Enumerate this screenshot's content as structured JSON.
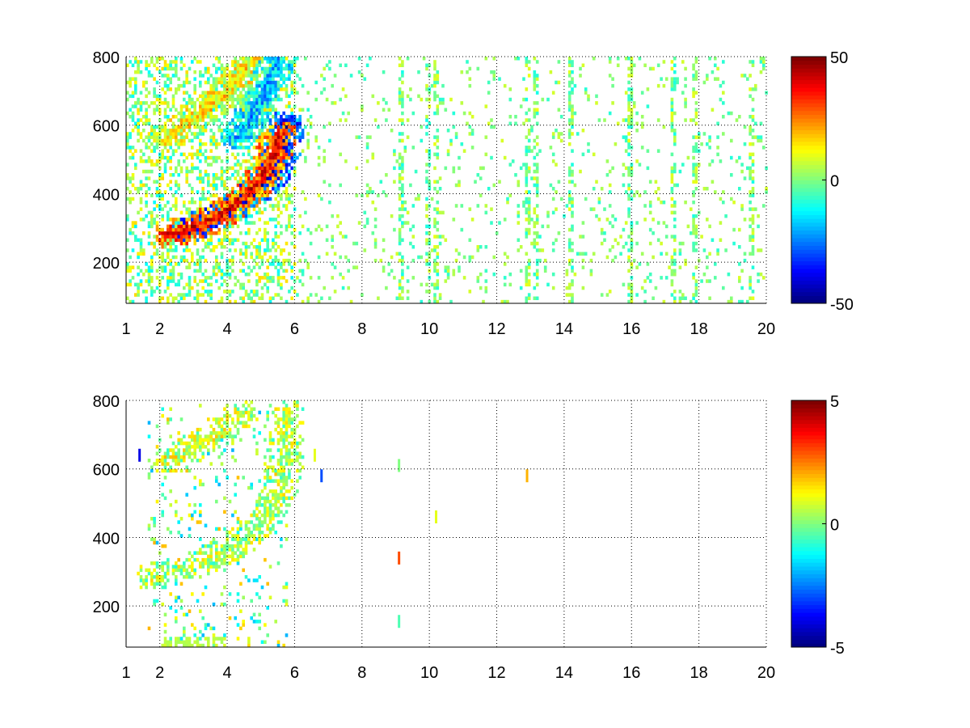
{
  "chart_data": [
    {
      "type": "heatmap",
      "title": "",
      "xlabel": "",
      "ylabel": "",
      "xlim": [
        1,
        20
      ],
      "ylim": [
        80,
        800
      ],
      "x_ticks": [
        1,
        2,
        4,
        6,
        8,
        10,
        12,
        14,
        16,
        18,
        20
      ],
      "y_ticks": [
        200,
        400,
        600,
        800
      ],
      "grid": true,
      "colormap": "jet",
      "clim": [
        -50,
        50
      ],
      "colorbar_ticks": [
        -50,
        0,
        50
      ],
      "features": [
        {
          "description": "strong negative ridge (blue)",
          "points": [
            [
              2.8,
              290
            ],
            [
              3.5,
              320
            ],
            [
              4.2,
              360
            ],
            [
              4.8,
              400
            ],
            [
              5.3,
              450
            ],
            [
              5.6,
              520
            ],
            [
              5.7,
              600
            ]
          ],
          "value": -45
        },
        {
          "description": "strong positive ridge (red)",
          "points": [
            [
              2.2,
              275
            ],
            [
              2.7,
              290
            ],
            [
              3.3,
              310
            ],
            [
              3.9,
              340
            ],
            [
              4.5,
              390
            ],
            [
              5.0,
              440
            ],
            [
              5.3,
              500
            ],
            [
              5.5,
              570
            ]
          ],
          "value": 40
        },
        {
          "description": "upper positive band",
          "points": [
            [
              2.2,
              560
            ],
            [
              2.8,
              600
            ],
            [
              3.5,
              650
            ],
            [
              4.2,
              720
            ],
            [
              4.6,
              780
            ]
          ],
          "value": 15
        },
        {
          "description": "upper negative band",
          "points": [
            [
              4.3,
              560
            ],
            [
              4.8,
              640
            ],
            [
              5.2,
              720
            ],
            [
              5.5,
              790
            ]
          ],
          "value": -20
        }
      ],
      "noise_columns_x": [
        9.1,
        9.9,
        10.2,
        12.9,
        13.1,
        14.2,
        15.9,
        17.2,
        17.8,
        19.5
      ]
    },
    {
      "type": "heatmap",
      "title": "",
      "xlabel": "",
      "ylabel": "",
      "xlim": [
        1,
        20
      ],
      "ylim": [
        80,
        800
      ],
      "x_ticks": [
        1,
        2,
        4,
        6,
        8,
        10,
        12,
        14,
        16,
        18,
        20
      ],
      "y_ticks": [
        200,
        400,
        600,
        800
      ],
      "grid": true,
      "colormap": "jet",
      "clim": [
        -5,
        5
      ],
      "colorbar_ticks": [
        -5,
        0,
        5
      ],
      "features": [
        {
          "description": "main band",
          "points": [
            [
              1.7,
              280
            ],
            [
              2.5,
              300
            ],
            [
              3.2,
              320
            ],
            [
              4.0,
              360
            ],
            [
              4.6,
              400
            ],
            [
              5.1,
              450
            ],
            [
              5.5,
              520
            ],
            [
              5.7,
              620
            ],
            [
              5.7,
              760
            ]
          ],
          "value": 0.5
        },
        {
          "description": "upper scattered band",
          "points": [
            [
              2.3,
              620
            ],
            [
              3.0,
              660
            ],
            [
              3.8,
              700
            ],
            [
              4.4,
              760
            ]
          ],
          "value": 0.8
        }
      ],
      "isolated_marks": [
        {
          "x": 9.1,
          "y": 340,
          "value": 3
        },
        {
          "x": 9.1,
          "y": 610,
          "value": 0
        },
        {
          "x": 9.1,
          "y": 155,
          "value": -0.5
        },
        {
          "x": 10.2,
          "y": 460,
          "value": 1
        },
        {
          "x": 12.9,
          "y": 580,
          "value": 2
        },
        {
          "x": 6.6,
          "y": 640,
          "value": 1
        },
        {
          "x": 6.8,
          "y": 580,
          "value": -3
        },
        {
          "x": 1.4,
          "y": 640,
          "value": -4
        }
      ]
    }
  ]
}
